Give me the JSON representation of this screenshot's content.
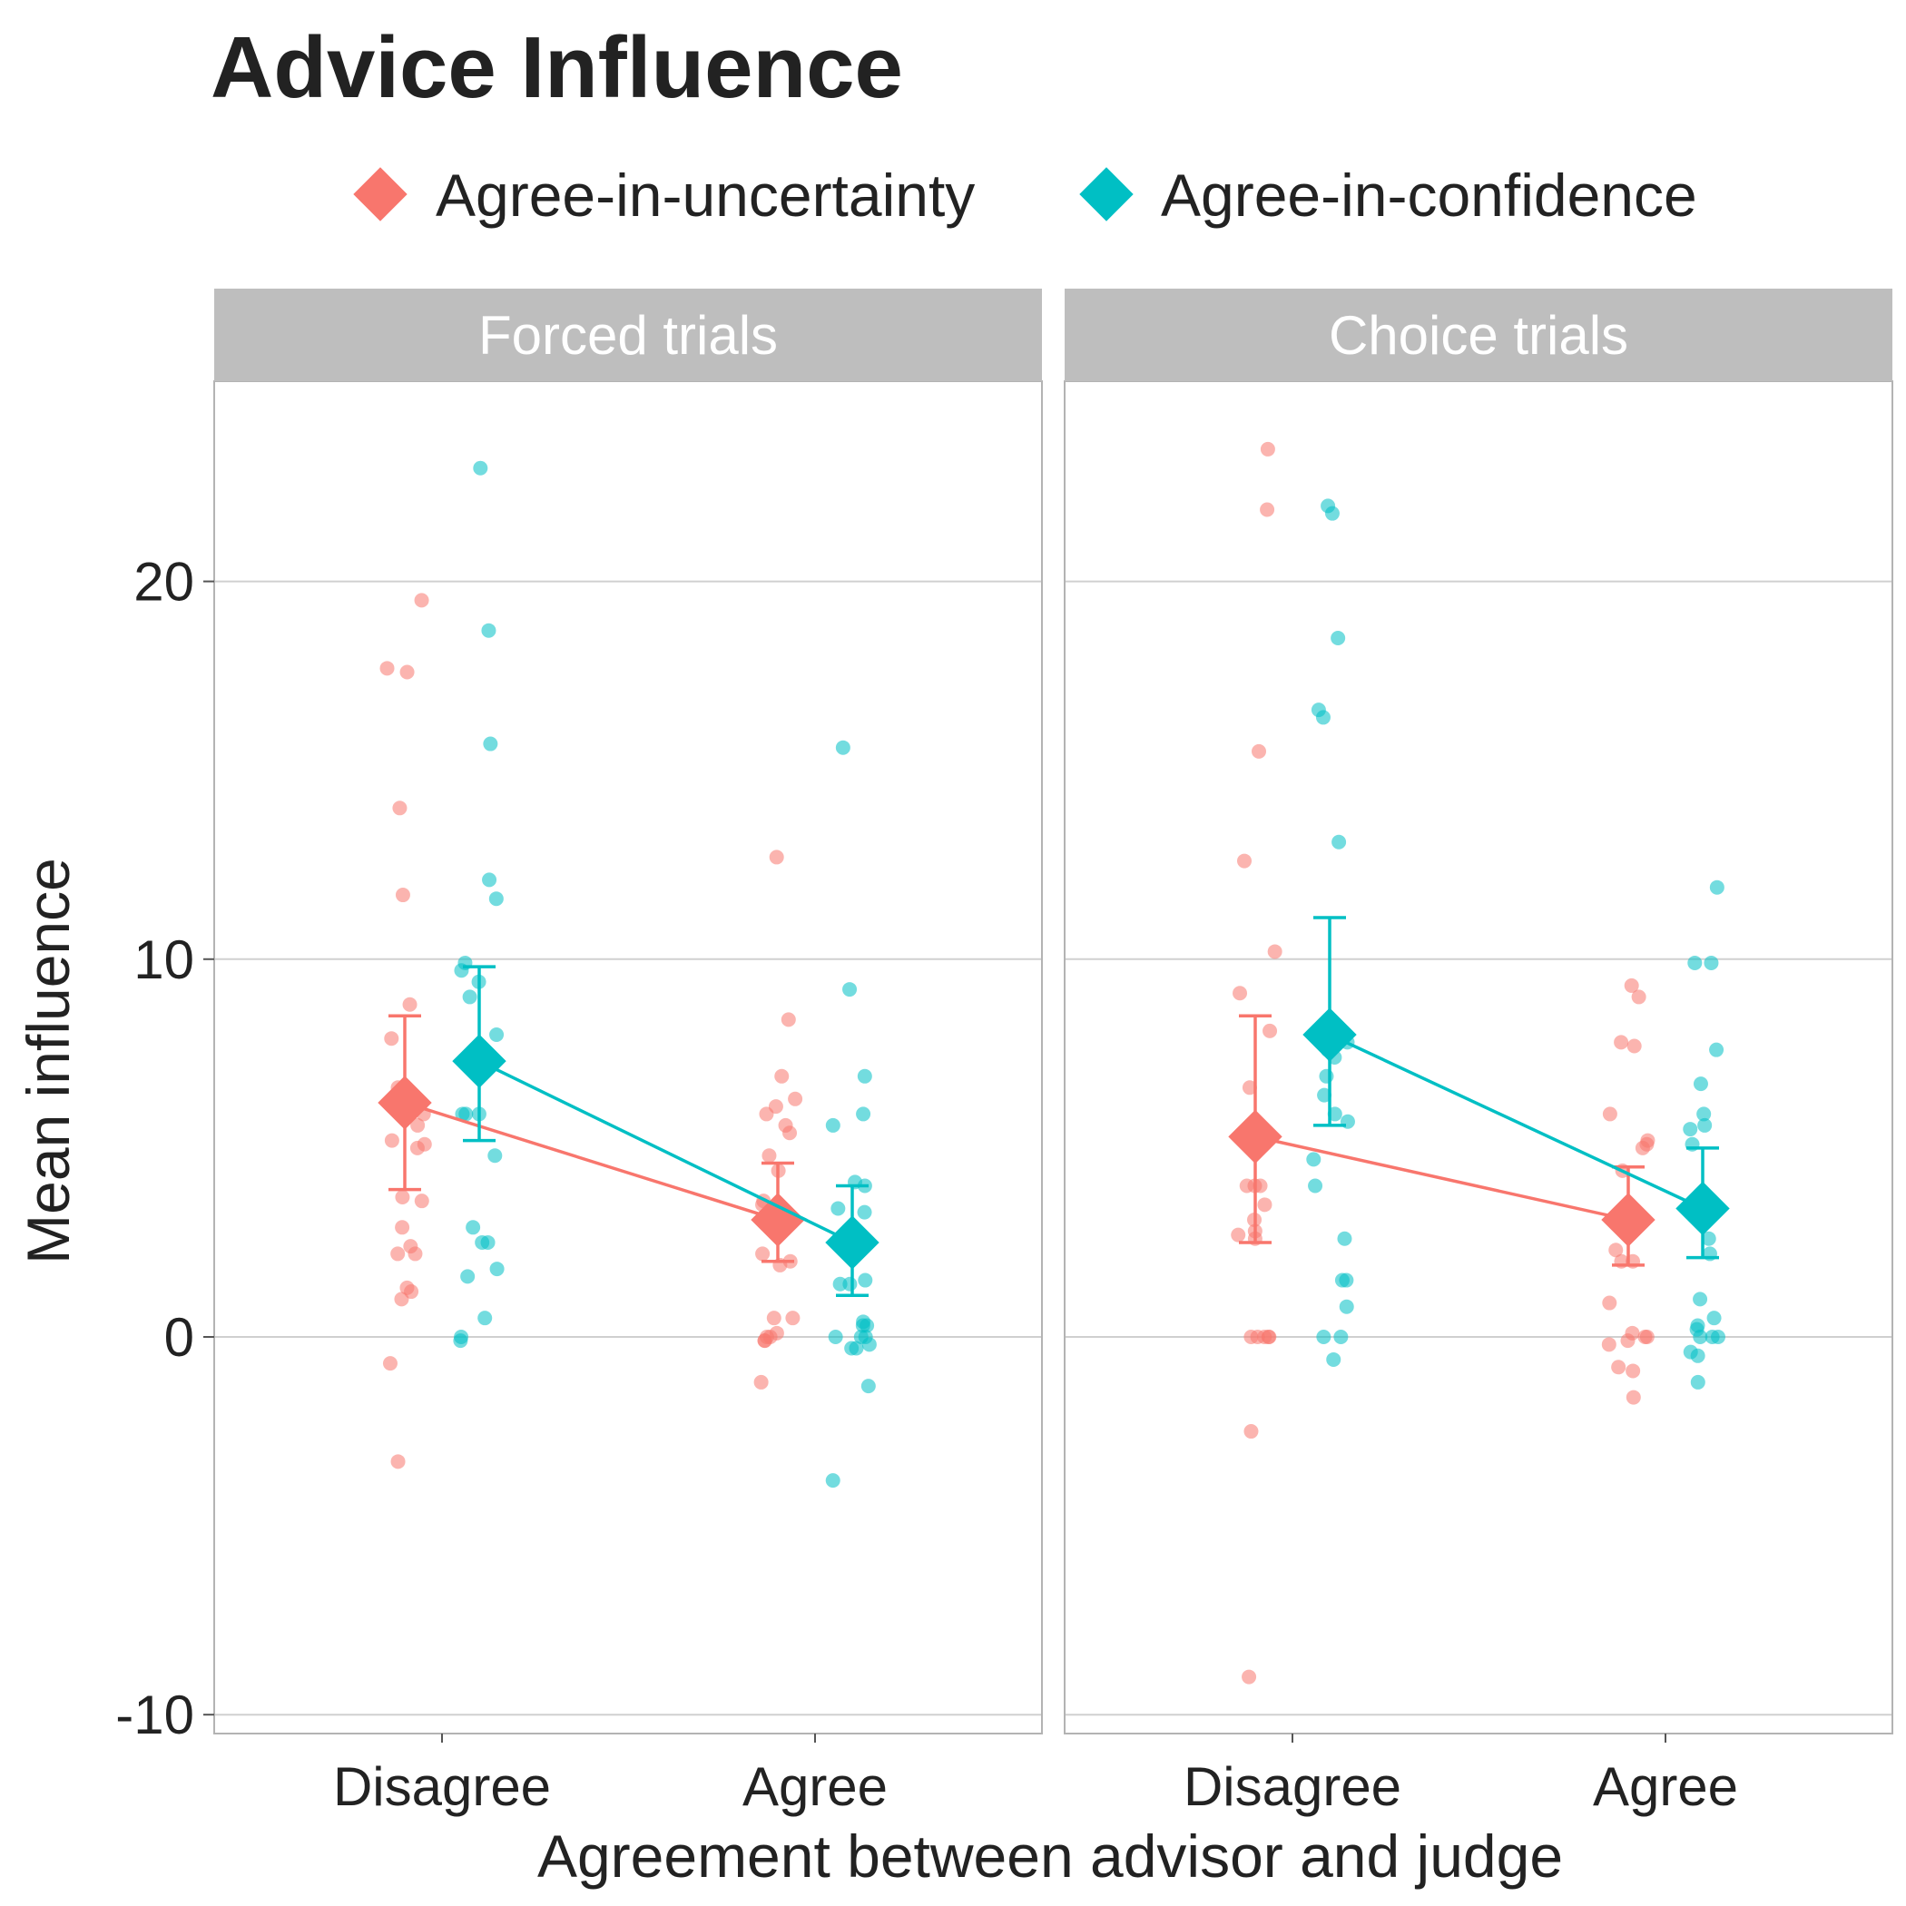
{
  "chart_data": {
    "type": "scatter",
    "title": "Advice Influence",
    "xlabel": "Agreement between advisor and judge",
    "ylabel": "Mean influence",
    "ylim": [
      -10.5,
      25.3
    ],
    "yticks": [
      -10,
      0,
      10,
      20
    ],
    "categories": [
      "Disagree",
      "Agree"
    ],
    "grid": true,
    "legend_placement": "top",
    "series_names": [
      "Agree-in-uncertainty",
      "Agree-in-confidence"
    ],
    "colors": {
      "Agree-in-uncertainty": "#F8766D",
      "Agree-in-confidence": "#00BFC4"
    },
    "panels": [
      {
        "title": "Forced trials",
        "series": [
          {
            "name": "Agree-in-uncertainty",
            "means": [
              6.2,
              3.1
            ],
            "ci_low": [
              3.9,
              2.0
            ],
            "ci_high": [
              8.5,
              4.6
            ],
            "points": [
              [
                19.5,
                17.7,
                17.6,
                14.0,
                11.7,
                8.8,
                7.9,
                6.6,
                6.2,
                5.9,
                5.6,
                5.2,
                5.1,
                5.0,
                3.7,
                3.6,
                2.9,
                2.4,
                2.2,
                2.2,
                1.3,
                1.2,
                1.0,
                -0.7,
                -3.3
              ],
              [
                12.7,
                8.4,
                6.9,
                6.3,
                6.1,
                5.9,
                5.6,
                5.4,
                4.8,
                4.4,
                3.6,
                3.5,
                3.1,
                2.2,
                2.0,
                1.9,
                0.5,
                0.5,
                0.1,
                0.0,
                0.0,
                -0.1,
                -0.1,
                -1.2
              ]
            ]
          },
          {
            "name": "Agree-in-confidence",
            "means": [
              7.3,
              2.5
            ],
            "ci_low": [
              5.2,
              1.1
            ],
            "ci_high": [
              9.8,
              4.0
            ],
            "points": [
              [
                23.0,
                18.7,
                15.7,
                12.1,
                11.6,
                9.9,
                9.7,
                9.4,
                9.0,
                8.0,
                5.9,
                5.9,
                5.9,
                4.8,
                2.9,
                2.5,
                2.5,
                1.8,
                1.6,
                0.5,
                0.0,
                -0.1
              ],
              [
                15.6,
                9.2,
                6.9,
                5.9,
                5.6,
                4.1,
                4.0,
                3.4,
                3.3,
                1.5,
                1.4,
                1.4,
                0.4,
                0.3,
                0.3,
                0.0,
                0.0,
                0.0,
                -0.2,
                -0.3,
                -0.3,
                -1.3,
                -3.8
              ]
            ]
          }
        ]
      },
      {
        "title": "Choice trials",
        "series": [
          {
            "name": "Agree-in-uncertainty",
            "means": [
              5.3,
              3.1
            ],
            "ci_low": [
              2.5,
              1.9
            ],
            "ci_high": [
              8.5,
              4.5
            ],
            "points": [
              [
                23.5,
                21.9,
                15.5,
                12.6,
                10.2,
                9.1,
                8.1,
                6.6,
                4.0,
                4.0,
                4.0,
                3.5,
                3.1,
                2.8,
                2.7,
                2.6,
                0.0,
                0.0,
                0.0,
                0.0,
                0.0,
                -2.5,
                -9.0
              ],
              [
                9.3,
                9.0,
                7.8,
                7.7,
                5.9,
                5.2,
                5.1,
                5.0,
                4.4,
                2.3,
                2.0,
                2.0,
                0.9,
                0.1,
                0.0,
                0.0,
                -0.1,
                -0.2,
                -0.8,
                -0.9,
                -1.6
              ]
            ]
          },
          {
            "name": "Agree-in-confidence",
            "means": [
              8.0,
              3.4
            ],
            "ci_low": [
              5.6,
              2.1
            ],
            "ci_high": [
              11.1,
              5.0
            ],
            "points": [
              [
                22.0,
                21.8,
                18.5,
                16.6,
                16.4,
                13.1,
                7.8,
                7.6,
                7.4,
                6.9,
                6.4,
                5.9,
                5.7,
                4.7,
                4.0,
                2.6,
                1.5,
                1.5,
                0.8,
                0.0,
                0.0,
                -0.6
              ],
              [
                11.9,
                9.9,
                9.9,
                7.6,
                6.7,
                5.9,
                5.6,
                5.5,
                5.1,
                2.6,
                2.2,
                1.0,
                0.5,
                0.3,
                0.2,
                0.0,
                0.0,
                0.0,
                -0.4,
                -0.5,
                -1.2
              ]
            ]
          }
        ]
      }
    ]
  }
}
